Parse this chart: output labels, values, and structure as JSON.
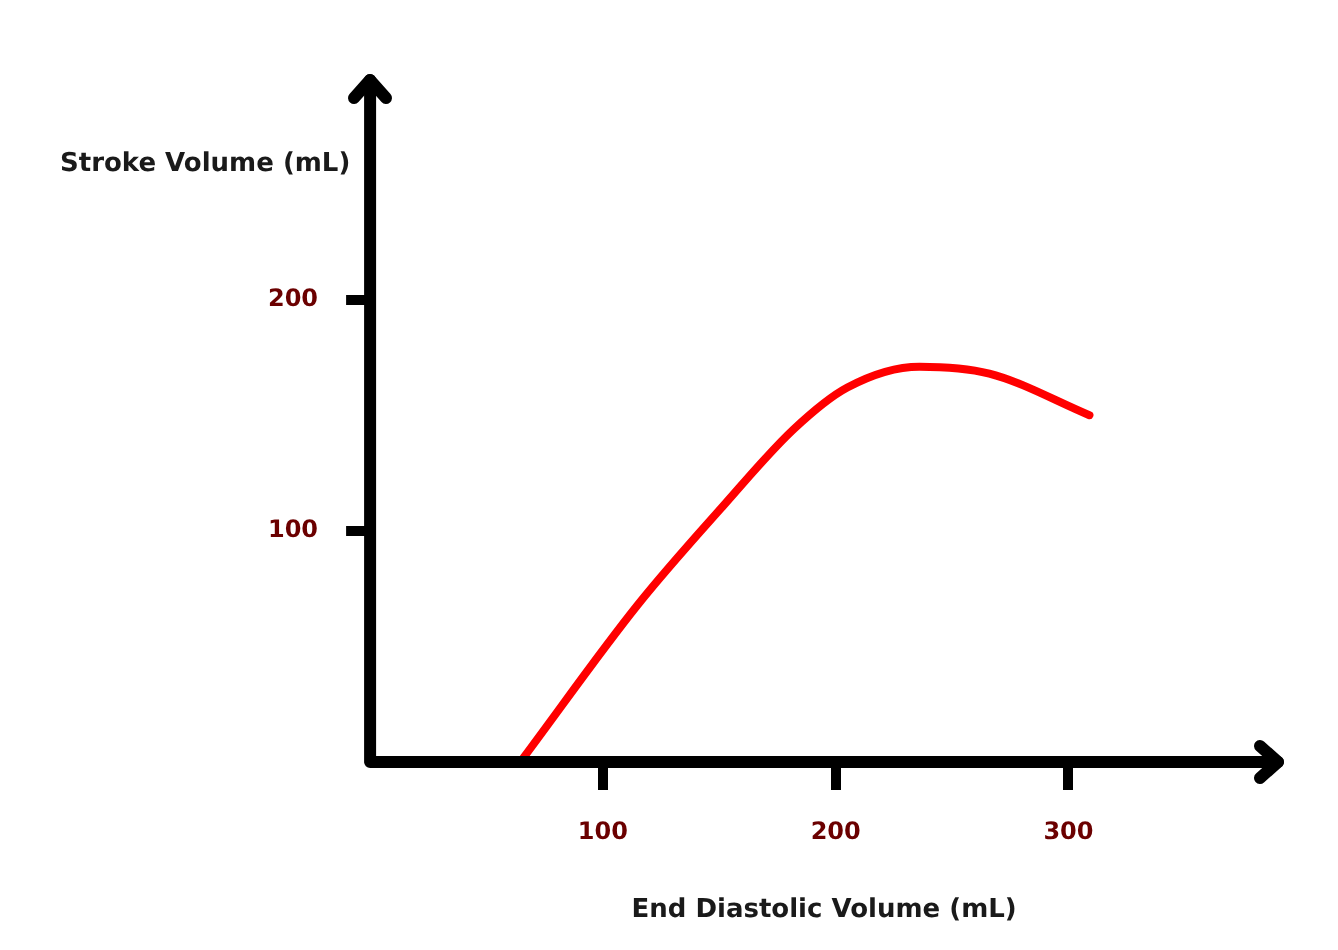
{
  "chart_data": {
    "type": "line",
    "xlabel": "End Diastolic Volume (mL)",
    "ylabel": "Stroke Volume (mL)",
    "xlim": [
      0,
      390
    ],
    "xticks": [
      100,
      200,
      300
    ],
    "ylim": [
      0,
      295
    ],
    "yticks": [
      100,
      200
    ],
    "grid": false,
    "legend": false,
    "marker": "none",
    "line_style": "solid",
    "series": [
      {
        "color": "#ff0000",
        "x": [
          66,
          115,
          151,
          182,
          205,
          236,
          266,
          309
        ],
        "values": [
          2,
          68,
          110,
          144,
          162,
          171,
          168,
          150
        ]
      }
    ]
  }
}
